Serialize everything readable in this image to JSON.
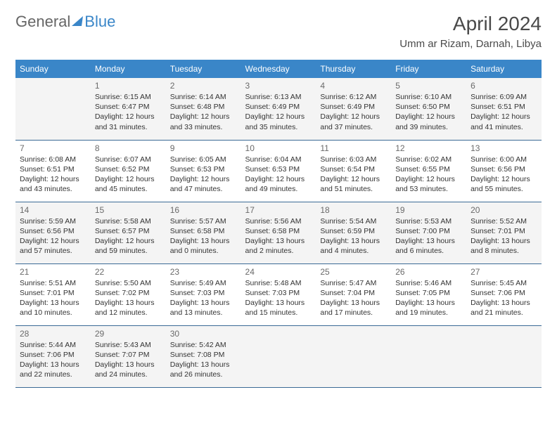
{
  "logo": {
    "text1": "General",
    "text2": "Blue"
  },
  "title": "April 2024",
  "location": "Umm ar Rizam, Darnah, Libya",
  "colors": {
    "header_bg": "#3a86c8",
    "header_fg": "#ffffff",
    "rule": "#3a6a95",
    "shade": "#f4f4f4",
    "text": "#333333"
  },
  "weekdays": [
    "Sunday",
    "Monday",
    "Tuesday",
    "Wednesday",
    "Thursday",
    "Friday",
    "Saturday"
  ],
  "weeks": [
    {
      "shaded": true,
      "cells": [
        null,
        {
          "n": "1",
          "sr": "6:15 AM",
          "ss": "6:47 PM",
          "dl": "12 hours and 31 minutes."
        },
        {
          "n": "2",
          "sr": "6:14 AM",
          "ss": "6:48 PM",
          "dl": "12 hours and 33 minutes."
        },
        {
          "n": "3",
          "sr": "6:13 AM",
          "ss": "6:49 PM",
          "dl": "12 hours and 35 minutes."
        },
        {
          "n": "4",
          "sr": "6:12 AM",
          "ss": "6:49 PM",
          "dl": "12 hours and 37 minutes."
        },
        {
          "n": "5",
          "sr": "6:10 AM",
          "ss": "6:50 PM",
          "dl": "12 hours and 39 minutes."
        },
        {
          "n": "6",
          "sr": "6:09 AM",
          "ss": "6:51 PM",
          "dl": "12 hours and 41 minutes."
        }
      ]
    },
    {
      "shaded": false,
      "cells": [
        {
          "n": "7",
          "sr": "6:08 AM",
          "ss": "6:51 PM",
          "dl": "12 hours and 43 minutes."
        },
        {
          "n": "8",
          "sr": "6:07 AM",
          "ss": "6:52 PM",
          "dl": "12 hours and 45 minutes."
        },
        {
          "n": "9",
          "sr": "6:05 AM",
          "ss": "6:53 PM",
          "dl": "12 hours and 47 minutes."
        },
        {
          "n": "10",
          "sr": "6:04 AM",
          "ss": "6:53 PM",
          "dl": "12 hours and 49 minutes."
        },
        {
          "n": "11",
          "sr": "6:03 AM",
          "ss": "6:54 PM",
          "dl": "12 hours and 51 minutes."
        },
        {
          "n": "12",
          "sr": "6:02 AM",
          "ss": "6:55 PM",
          "dl": "12 hours and 53 minutes."
        },
        {
          "n": "13",
          "sr": "6:00 AM",
          "ss": "6:56 PM",
          "dl": "12 hours and 55 minutes."
        }
      ]
    },
    {
      "shaded": true,
      "cells": [
        {
          "n": "14",
          "sr": "5:59 AM",
          "ss": "6:56 PM",
          "dl": "12 hours and 57 minutes."
        },
        {
          "n": "15",
          "sr": "5:58 AM",
          "ss": "6:57 PM",
          "dl": "12 hours and 59 minutes."
        },
        {
          "n": "16",
          "sr": "5:57 AM",
          "ss": "6:58 PM",
          "dl": "13 hours and 0 minutes."
        },
        {
          "n": "17",
          "sr": "5:56 AM",
          "ss": "6:58 PM",
          "dl": "13 hours and 2 minutes."
        },
        {
          "n": "18",
          "sr": "5:54 AM",
          "ss": "6:59 PM",
          "dl": "13 hours and 4 minutes."
        },
        {
          "n": "19",
          "sr": "5:53 AM",
          "ss": "7:00 PM",
          "dl": "13 hours and 6 minutes."
        },
        {
          "n": "20",
          "sr": "5:52 AM",
          "ss": "7:01 PM",
          "dl": "13 hours and 8 minutes."
        }
      ]
    },
    {
      "shaded": false,
      "cells": [
        {
          "n": "21",
          "sr": "5:51 AM",
          "ss": "7:01 PM",
          "dl": "13 hours and 10 minutes."
        },
        {
          "n": "22",
          "sr": "5:50 AM",
          "ss": "7:02 PM",
          "dl": "13 hours and 12 minutes."
        },
        {
          "n": "23",
          "sr": "5:49 AM",
          "ss": "7:03 PM",
          "dl": "13 hours and 13 minutes."
        },
        {
          "n": "24",
          "sr": "5:48 AM",
          "ss": "7:03 PM",
          "dl": "13 hours and 15 minutes."
        },
        {
          "n": "25",
          "sr": "5:47 AM",
          "ss": "7:04 PM",
          "dl": "13 hours and 17 minutes."
        },
        {
          "n": "26",
          "sr": "5:46 AM",
          "ss": "7:05 PM",
          "dl": "13 hours and 19 minutes."
        },
        {
          "n": "27",
          "sr": "5:45 AM",
          "ss": "7:06 PM",
          "dl": "13 hours and 21 minutes."
        }
      ]
    },
    {
      "shaded": true,
      "cells": [
        {
          "n": "28",
          "sr": "5:44 AM",
          "ss": "7:06 PM",
          "dl": "13 hours and 22 minutes."
        },
        {
          "n": "29",
          "sr": "5:43 AM",
          "ss": "7:07 PM",
          "dl": "13 hours and 24 minutes."
        },
        {
          "n": "30",
          "sr": "5:42 AM",
          "ss": "7:08 PM",
          "dl": "13 hours and 26 minutes."
        },
        null,
        null,
        null,
        null
      ]
    }
  ],
  "labels": {
    "sunrise": "Sunrise:",
    "sunset": "Sunset:",
    "daylight": "Daylight:"
  }
}
